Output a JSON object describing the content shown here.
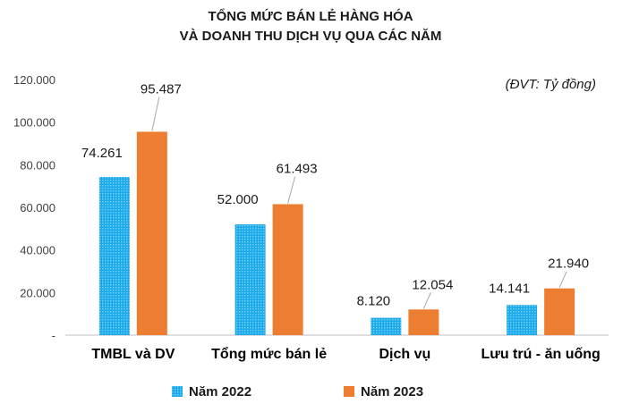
{
  "chart_data": {
    "type": "bar",
    "title_lines": [
      "TỔNG MỨC BÁN LẺ HÀNG HÓA",
      "VÀ DOANH THU DỊCH VỤ QUA CÁC NĂM"
    ],
    "unit_note": "(ĐVT: Tỷ đồng)",
    "categories": [
      "TMBL và DV",
      "Tổng mức bán lẻ",
      "Dịch vụ",
      "Lưu trú - ăn uống"
    ],
    "series": [
      {
        "name": "Năm 2022",
        "color": "#1ba9ea",
        "pattern": "dotted",
        "values": [
          74261,
          52000,
          8120,
          14141
        ],
        "labels": [
          "74.261",
          "52.000",
          "8.120",
          "14.141"
        ]
      },
      {
        "name": "Năm 2023",
        "color": "#ed7d31",
        "pattern": "solid",
        "values": [
          95487,
          61493,
          12054,
          21940
        ],
        "labels": [
          "95.487",
          "61.493",
          "12.054",
          "21.940"
        ]
      }
    ],
    "ylim": [
      0,
      120000
    ],
    "yticks": [
      0,
      20000,
      40000,
      60000,
      80000,
      100000,
      120000
    ],
    "ytick_labels": [
      "-",
      "20.000",
      "40.000",
      "60.000",
      "80.000",
      "100.000",
      "120.000"
    ],
    "grid": false,
    "legend_position": "bottom"
  }
}
